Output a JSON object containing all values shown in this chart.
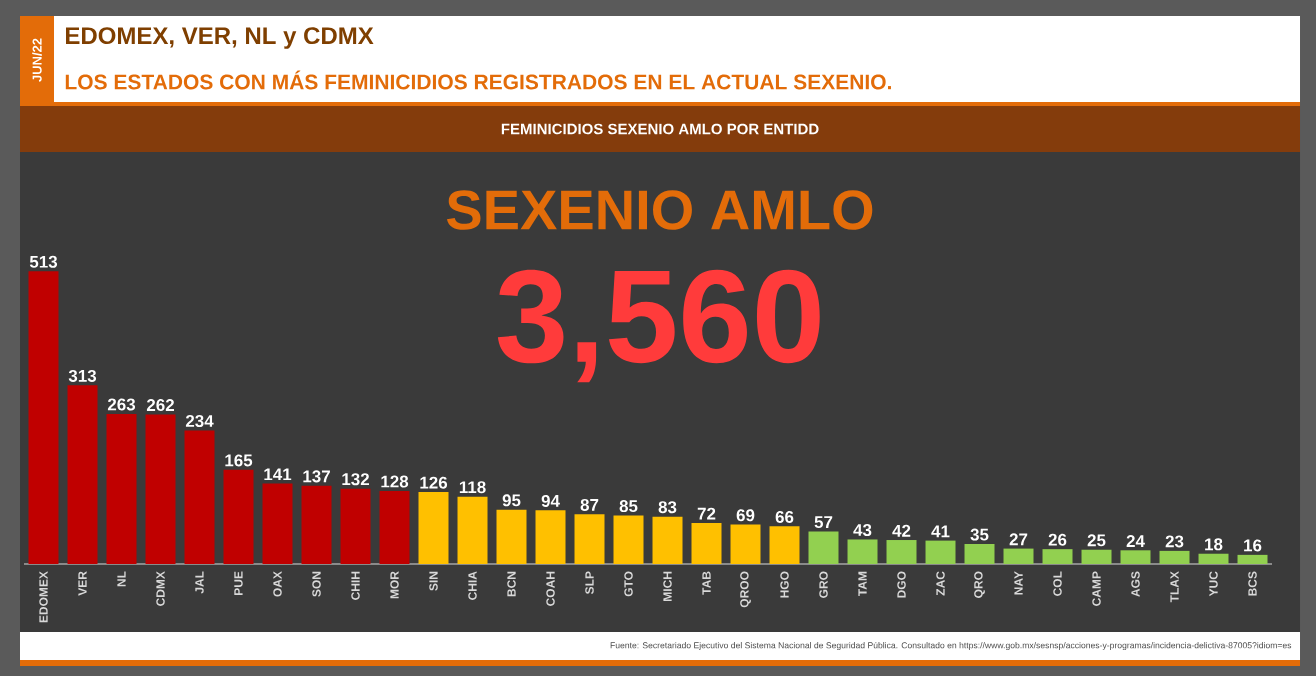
{
  "chart_data": {
    "type": "bar",
    "title": "EDOMEX, VER, NL y CDMX",
    "subtitle": "LOS ESTADOS CON MÁS FEMINICIDIOS REGISTRADOS EN EL ACTUAL SEXENIO.",
    "annotations": [
      "JUN/22",
      "FEMINICIDIOS SEXENIO AMLO POR ENTIDD",
      "SEXENIO AMLO",
      "3,560",
      "Fuente: Secretariado Ejecutivo del Sistema Nacional de Seguridad Pública. Consultado en https://www.gob.mx/sesnsp/acciones-y-programas/incidencia-delictiva-87005?idiom=es"
    ],
    "categories": [
      "EDOMEX",
      "VER",
      "NL",
      "CDMX",
      "JAL",
      "PUE",
      "OAX",
      "SON",
      "CHIH",
      "MOR",
      "SIN",
      "CHIA",
      "BCN",
      "COAH",
      "SLP",
      "GTO",
      "MICH",
      "TAB",
      "QROO",
      "HGO",
      "GRO",
      "TAM",
      "DGO",
      "ZAC",
      "QRO",
      "NAY",
      "COL",
      "CAMP",
      "AGS",
      "TLAX",
      "YUC",
      "BCS"
    ],
    "values": [
      513,
      313,
      263,
      262,
      234,
      165,
      141,
      137,
      132,
      128,
      126,
      118,
      95,
      94,
      87,
      85,
      83,
      72,
      69,
      66,
      57,
      43,
      42,
      41,
      35,
      27,
      26,
      25,
      24,
      23,
      18,
      16
    ],
    "colors": [
      "#c00000",
      "#c00000",
      "#c00000",
      "#c00000",
      "#c00000",
      "#c00000",
      "#c00000",
      "#c00000",
      "#c00000",
      "#c00000",
      "#ffc000",
      "#ffc000",
      "#ffc000",
      "#ffc000",
      "#ffc000",
      "#ffc000",
      "#ffc000",
      "#ffc000",
      "#ffc000",
      "#ffc000",
      "#92d050",
      "#92d050",
      "#92d050",
      "#92d050",
      "#92d050",
      "#92d050",
      "#92d050",
      "#92d050",
      "#92d050",
      "#92d050",
      "#92d050",
      "#92d050"
    ],
    "data_labels": true
  }
}
